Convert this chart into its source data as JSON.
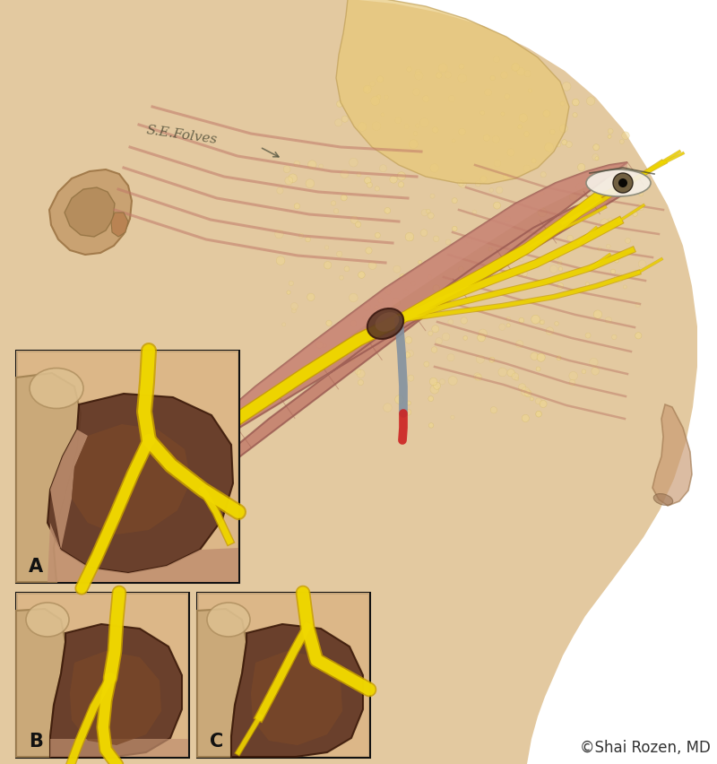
{
  "copyright_text": "©Shai Rozen, MD",
  "copyright_fontsize": 12,
  "copyright_color": "#333333",
  "background_color": "#ffffff",
  "fig_width": 8.0,
  "fig_height": 8.53,
  "label_A": "A",
  "label_B": "B",
  "label_C": "C",
  "label_fontsize": 15,
  "label_color": "#111111",
  "skin_light": "#e8c9a8",
  "skin_mid": "#d4a878",
  "skin_dark": "#c09060",
  "muscle_pink": "#c8857a",
  "muscle_stripe": "#b07060",
  "nerve_yellow": "#f0d800",
  "nerve_dark": "#c8a000",
  "fat_dot": "#f5e090",
  "dark_brown": "#6b4030",
  "medium_brown": "#8b5a3a",
  "light_brown": "#c4907a",
  "suture_gray": "#8090a0",
  "suture_red": "#cc2222",
  "box_bg_A": "#d4a878",
  "box_bg_BC": "#d4a878",
  "box_outline": "#111111",
  "face_skin_light": "#dcc090",
  "face_skin_mid": "#c8a878",
  "ear_outer": "#c8a070",
  "ear_inner": "#b89060",
  "white_bg": "#ffffff",
  "inset_bone_left": "#c8a882",
  "inset_bone_light": "#dbb898",
  "inset_muscle_bg": "#c4907a",
  "inset_dark1": "#5a3020",
  "inset_dark2": "#7a4830",
  "inset_mid": "#9a6040"
}
